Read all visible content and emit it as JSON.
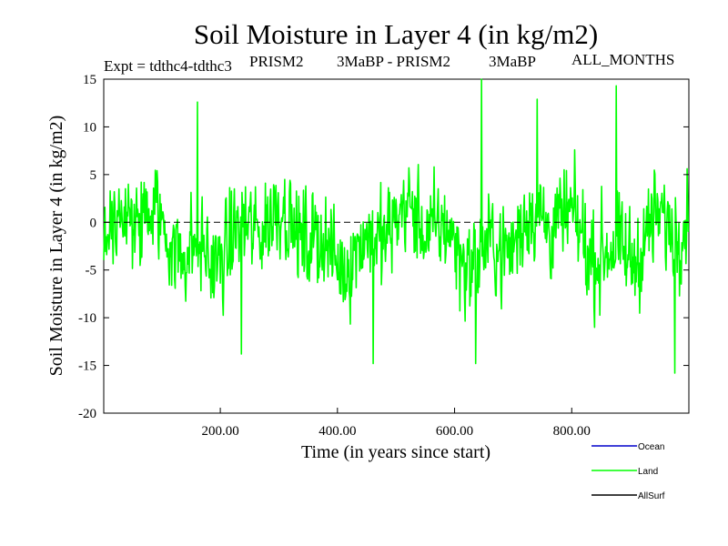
{
  "chart_data": {
    "type": "line",
    "title": "Soil Moisture in Layer 4 (in kg/m2)",
    "subtitle": {
      "expt": "Expt = tdthc4-tdthc3",
      "left": "PRISM2",
      "middle": "3MaBP - PRISM2",
      "right": "3MaBP",
      "period": "ALL_MONTHS"
    },
    "xlabel": "Time (in years since start)",
    "ylabel": "Soil Moisture in Layer 4 (in kg/m2)",
    "xlim": [
      1,
      1000
    ],
    "ylim": [
      -20,
      15
    ],
    "xticks": [
      200,
      400,
      600,
      800
    ],
    "xtick_labels": [
      "200.00",
      "400.00",
      "600.00",
      "800.00"
    ],
    "yticks": [
      -20,
      -15,
      -10,
      -5,
      0,
      5,
      10,
      15
    ],
    "ytick_labels": [
      "-20",
      "-15",
      "-10",
      "-5",
      "0",
      "5",
      "10",
      "15"
    ],
    "reference_line": {
      "y": 0,
      "style": "dashed"
    },
    "legend_position": "bottom-right",
    "series": [
      {
        "name": "Ocean",
        "color": "#0000cc",
        "values": []
      },
      {
        "name": "Land",
        "color": "#00ff00",
        "generator": {
          "count": 1000,
          "mean": -1.5,
          "spread": 4.5,
          "min": -16,
          "max": 15,
          "peaks": [
            [
              645,
              15.0
            ],
            [
              875,
              14.3
            ],
            [
              740,
              12.9
            ],
            [
              975,
              -15.8
            ],
            [
              460,
              -14.8
            ],
            [
              635,
              -14.8
            ],
            [
              235,
              -13.8
            ],
            [
              160,
              12.6
            ]
          ]
        }
      },
      {
        "name": "AllSurf",
        "color": "#000000",
        "values": []
      }
    ]
  }
}
